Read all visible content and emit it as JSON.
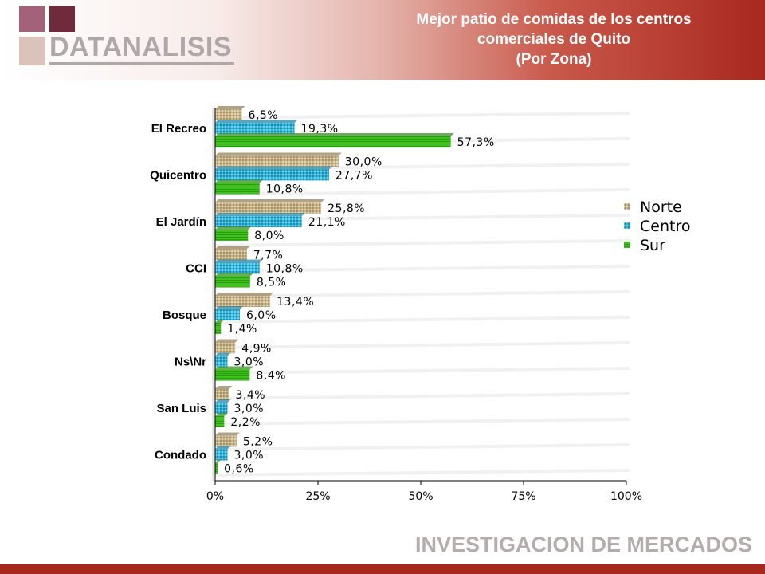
{
  "logo": {
    "text": "DATANALISIS"
  },
  "title": {
    "line1": "Mejor patio de comidas de los centros",
    "line2": "comerciales de Quito",
    "line3": "(Por Zona)"
  },
  "footer": {
    "text": "INVESTIGACION DE MERCADOS"
  },
  "colors": {
    "header_dark": "#a8281e",
    "logo_square_1": "#a3627a",
    "logo_square_2": "#6f2b3c",
    "logo_square_3": "#d9c3bb",
    "norte": "#c8b48a",
    "centro": "#33b3d6",
    "sur": "#3fc11e"
  },
  "chart_data": {
    "type": "bar",
    "orientation": "horizontal",
    "categories": [
      "El Recreo",
      "Quicentro",
      "El Jardín",
      "CCI",
      "Bosque",
      "Ns\\Nr",
      "San Luis",
      "Condado"
    ],
    "series": [
      {
        "name": "Norte",
        "values": [
          6.5,
          30.0,
          25.8,
          7.7,
          13.4,
          4.9,
          3.4,
          5.2
        ],
        "labels": [
          "6,5%",
          "30,0%",
          "25,8%",
          "7,7%",
          "13,4%",
          "4,9%",
          "3,4%",
          "5,2%"
        ]
      },
      {
        "name": "Centro",
        "values": [
          19.3,
          27.7,
          21.1,
          10.8,
          6.0,
          3.0,
          3.0,
          3.0
        ],
        "labels": [
          "19,3%",
          "27,7%",
          "21,1%",
          "10,8%",
          "6,0%",
          "3,0%",
          "3,0%",
          "3,0%"
        ]
      },
      {
        "name": "Sur",
        "values": [
          57.3,
          10.8,
          8.0,
          8.5,
          1.4,
          8.4,
          2.2,
          0.6
        ],
        "labels": [
          "57,3%",
          "10,8%",
          "8,0%",
          "8,5%",
          "1,4%",
          "8,4%",
          "2,2%",
          "0,6%"
        ]
      }
    ],
    "xlim": [
      0,
      100
    ],
    "xticks": [
      "0%",
      "25%",
      "50%",
      "75%",
      "100%"
    ],
    "legend_position": "right",
    "grid": false
  }
}
